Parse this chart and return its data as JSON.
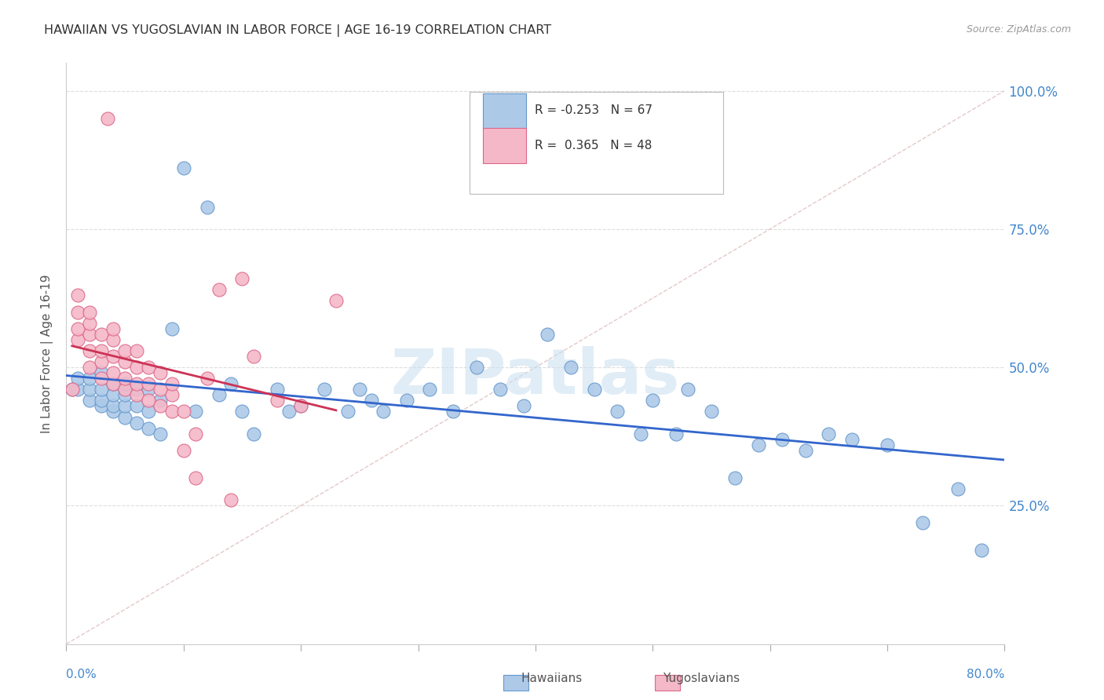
{
  "title": "HAWAIIAN VS YUGOSLAVIAN IN LABOR FORCE | AGE 16-19 CORRELATION CHART",
  "source": "Source: ZipAtlas.com",
  "ylabel": "In Labor Force | Age 16-19",
  "ytick_labels": [
    "25.0%",
    "50.0%",
    "75.0%",
    "100.0%"
  ],
  "ytick_vals": [
    0.25,
    0.5,
    0.75,
    1.0
  ],
  "xmin": 0.0,
  "xmax": 0.8,
  "ymin": 0.0,
  "ymax": 1.05,
  "r_hawaiian": -0.253,
  "n_hawaiian": 67,
  "r_yugoslav": 0.365,
  "n_yugoslav": 48,
  "hawaiian_color": "#adc9e8",
  "hawaiian_edge": "#6699cc",
  "yugoslav_color": "#f4b8c8",
  "yugoslav_edge": "#dd6688",
  "trend_blue": "#3366cc",
  "trend_pink": "#cc3355",
  "diagonal_color": "#ddbbbb",
  "grid_color": "#dddddd",
  "ytick_color": "#4488cc",
  "background": "#ffffff",
  "watermark_color": "#c8dff0",
  "hawaiian_x": [
    0.005,
    0.01,
    0.01,
    0.02,
    0.02,
    0.02,
    0.03,
    0.03,
    0.03,
    0.03,
    0.04,
    0.04,
    0.04,
    0.04,
    0.05,
    0.05,
    0.05,
    0.05,
    0.06,
    0.06,
    0.06,
    0.07,
    0.07,
    0.07,
    0.08,
    0.08,
    0.09,
    0.1,
    0.11,
    0.12,
    0.13,
    0.14,
    0.15,
    0.16,
    0.18,
    0.19,
    0.2,
    0.22,
    0.24,
    0.25,
    0.26,
    0.27,
    0.29,
    0.31,
    0.33,
    0.35,
    0.37,
    0.39,
    0.41,
    0.43,
    0.45,
    0.47,
    0.49,
    0.5,
    0.52,
    0.53,
    0.55,
    0.57,
    0.59,
    0.61,
    0.63,
    0.65,
    0.67,
    0.7,
    0.73,
    0.76,
    0.78
  ],
  "hawaiian_y": [
    0.46,
    0.46,
    0.48,
    0.44,
    0.46,
    0.48,
    0.43,
    0.44,
    0.46,
    0.49,
    0.42,
    0.43,
    0.45,
    0.47,
    0.41,
    0.43,
    0.45,
    0.47,
    0.4,
    0.43,
    0.46,
    0.39,
    0.42,
    0.46,
    0.38,
    0.44,
    0.57,
    0.86,
    0.42,
    0.79,
    0.45,
    0.47,
    0.42,
    0.38,
    0.46,
    0.42,
    0.43,
    0.46,
    0.42,
    0.46,
    0.44,
    0.42,
    0.44,
    0.46,
    0.42,
    0.5,
    0.46,
    0.43,
    0.56,
    0.5,
    0.46,
    0.42,
    0.38,
    0.44,
    0.38,
    0.46,
    0.42,
    0.3,
    0.36,
    0.37,
    0.35,
    0.38,
    0.37,
    0.36,
    0.22,
    0.28,
    0.17
  ],
  "yugoslav_x": [
    0.005,
    0.01,
    0.01,
    0.01,
    0.01,
    0.02,
    0.02,
    0.02,
    0.02,
    0.02,
    0.03,
    0.03,
    0.03,
    0.03,
    0.04,
    0.04,
    0.04,
    0.04,
    0.04,
    0.05,
    0.05,
    0.05,
    0.05,
    0.06,
    0.06,
    0.06,
    0.06,
    0.07,
    0.07,
    0.07,
    0.08,
    0.08,
    0.08,
    0.09,
    0.09,
    0.09,
    0.1,
    0.1,
    0.11,
    0.11,
    0.12,
    0.13,
    0.14,
    0.15,
    0.16,
    0.18,
    0.2,
    0.23
  ],
  "yugoslav_y": [
    0.46,
    0.55,
    0.57,
    0.6,
    0.63,
    0.5,
    0.53,
    0.56,
    0.58,
    0.6,
    0.48,
    0.51,
    0.53,
    0.56,
    0.47,
    0.49,
    0.52,
    0.55,
    0.57,
    0.46,
    0.48,
    0.51,
    0.53,
    0.45,
    0.47,
    0.5,
    0.53,
    0.44,
    0.47,
    0.5,
    0.43,
    0.46,
    0.49,
    0.42,
    0.45,
    0.47,
    0.35,
    0.42,
    0.38,
    0.3,
    0.48,
    0.64,
    0.26,
    0.66,
    0.52,
    0.44,
    0.43,
    0.62
  ],
  "yugoslav_outlier_x": [
    0.035
  ],
  "yugoslav_outlier_y": [
    0.95
  ]
}
